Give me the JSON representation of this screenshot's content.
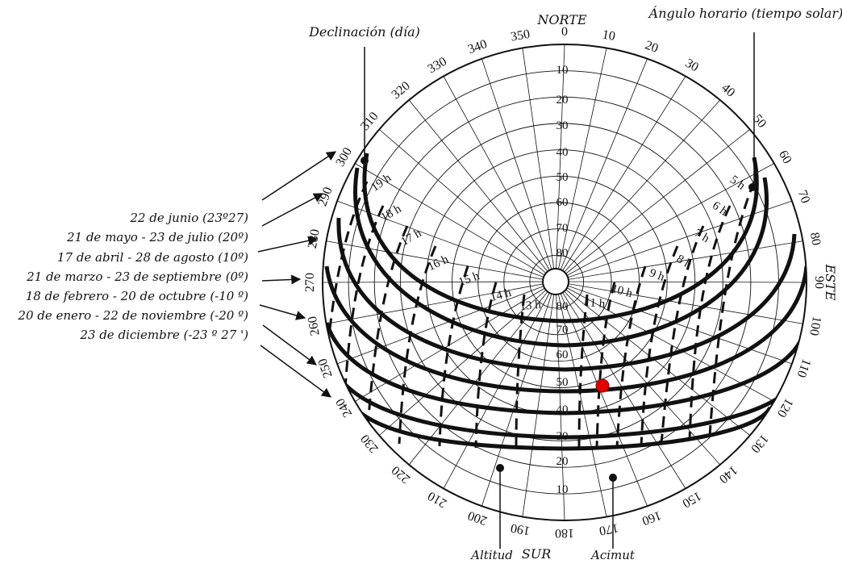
{
  "labels": {
    "north": "NORTE",
    "south": "SUR",
    "east": "ESTE",
    "declination_title": "Declinación (día)",
    "hour_angle_title": "Ángulo horario (tiempo solar)",
    "altitude": "Altitud",
    "azimuth": "Acimut"
  },
  "declination_dates": [
    "22 de junio (23º27)",
    "21 de mayo - 23 de julio (20º)",
    "17 de abril - 28 de agosto (10º)",
    "21 de marzo - 23 de septiembre (0º)",
    "18 de febrero - 20 de octubre (-10 º)",
    "20 de enero - 22 de noviembre (-20 º)",
    "23 de diciembre (-23 º 27 ')"
  ],
  "azimuth_ticks": [
    "0",
    "10",
    "20",
    "30",
    "40",
    "50",
    "60",
    "70",
    "80",
    "90",
    "100",
    "110",
    "120",
    "130",
    "140",
    "150",
    "160",
    "170",
    "180",
    "190",
    "200",
    "210",
    "220",
    "230",
    "240",
    "250",
    "260",
    "270",
    "280",
    "290",
    "300",
    "310",
    "320",
    "330",
    "340",
    "350"
  ],
  "altitude_ticks_north": [
    "10",
    "20",
    "30",
    "40",
    "50",
    "60",
    "70",
    "80"
  ],
  "altitude_ticks_south": [
    "80",
    "70",
    "60",
    "50",
    "40",
    "30",
    "20",
    "10"
  ],
  "hour_labels": [
    "5 h",
    "6 h",
    "7 h",
    "8 h",
    "9 h",
    "10 h",
    "11 h",
    "13 h",
    "14 h",
    "15 h",
    "16 h",
    "17 h",
    "18 h",
    "19 h"
  ],
  "colors": {
    "ink": "#111111",
    "marker": "#e00000"
  }
}
